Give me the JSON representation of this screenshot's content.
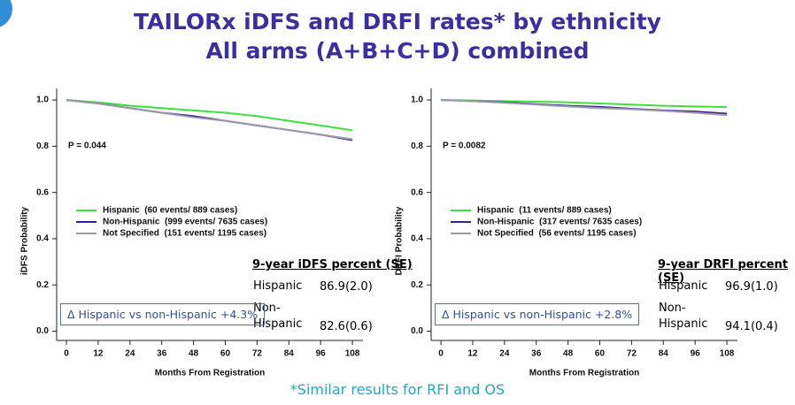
{
  "slide": {
    "title": [
      "TAILORx iDFS and DRFI rates* by ethnicity",
      "All arms (A+B+C+D) combined"
    ],
    "footnote": "*Similar results for RFI and OS"
  },
  "chart_data": [
    {
      "type": "line",
      "x_label": "Months From Registration",
      "y_label": "iDFS Probability",
      "x": [
        0,
        12,
        24,
        36,
        48,
        60,
        72,
        84,
        96,
        108
      ],
      "xlim": [
        -3.7,
        112
      ],
      "ylim": [
        -0.04,
        1.05
      ],
      "xticks": [
        0,
        12,
        24,
        36,
        48,
        60,
        72,
        84,
        96,
        108
      ],
      "yticks": [
        {
          "value": 0,
          "label": "0.0"
        },
        0.2,
        0.4,
        0.6,
        0.8,
        {
          "value": 1,
          "label": "1.0"
        }
      ],
      "legend": "center left",
      "series": [
        {
          "name": "Hispanic  (60 events/ 889 cases)",
          "color": "#3ee03e",
          "values": [
            1.0,
            0.99,
            0.975,
            0.965,
            0.955,
            0.945,
            0.93,
            0.91,
            0.89,
            0.869
          ]
        },
        {
          "name": "Non-Hispanic  (999 events/ 7635 cases)",
          "color": "#3a1f9a",
          "values": [
            1.0,
            0.985,
            0.965,
            0.945,
            0.93,
            0.91,
            0.89,
            0.87,
            0.85,
            0.826
          ]
        },
        {
          "name": "Not Specified  (151 events/ 1195 cases)",
          "color": "#9a9aa8",
          "values": [
            1.0,
            0.985,
            0.965,
            0.945,
            0.925,
            0.91,
            0.89,
            0.87,
            0.85,
            0.83
          ]
        }
      ],
      "p_value": "P = 0.044",
      "se_table": {
        "title": "9-year iDFS percent (SE)",
        "rows": [
          {
            "group": "Hispanic",
            "value": "86.9(2.0)"
          },
          {
            "group": "Non-Hispanic",
            "value": "82.6(0.6)"
          }
        ]
      },
      "delta_note": "Δ Hispanic vs non-Hispanic +4.3%"
    },
    {
      "type": "line",
      "x_label": "Months From Registration",
      "y_label": "DRFI Probability",
      "x": [
        0,
        12,
        24,
        36,
        48,
        60,
        72,
        84,
        96,
        108
      ],
      "xlim": [
        -3.7,
        112
      ],
      "ylim": [
        -0.04,
        1.05
      ],
      "xticks": [
        0,
        12,
        24,
        36,
        48,
        60,
        72,
        84,
        96,
        108
      ],
      "yticks": [
        {
          "value": 0,
          "label": "0.0"
        },
        0.2,
        0.4,
        0.6,
        0.8,
        {
          "value": 1,
          "label": "1.0"
        }
      ],
      "legend": "center left",
      "series": [
        {
          "name": "Hispanic  (11 events/ 889 cases)",
          "color": "#3ee03e",
          "values": [
            1.0,
            0.998,
            0.995,
            0.993,
            0.99,
            0.985,
            0.98,
            0.975,
            0.972,
            0.969
          ]
        },
        {
          "name": "Non-Hispanic  (317 events/ 7635 cases)",
          "color": "#3a1f9a",
          "values": [
            1.0,
            0.995,
            0.99,
            0.982,
            0.975,
            0.97,
            0.962,
            0.955,
            0.95,
            0.941
          ]
        },
        {
          "name": "Not Specified  (56 events/ 1195 cases)",
          "color": "#9a9aa8",
          "values": [
            1.0,
            0.995,
            0.988,
            0.98,
            0.972,
            0.965,
            0.96,
            0.953,
            0.945,
            0.935
          ]
        }
      ],
      "p_value": "P = 0.0082",
      "se_table": {
        "title": "9-year DRFI percent (SE)",
        "rows": [
          {
            "group": "Hispanic",
            "value": "96.9(1.0)"
          },
          {
            "group": "Non-Hispanic",
            "value": "94.1(0.4)"
          }
        ]
      },
      "delta_note": "Δ Hispanic vs non-Hispanic +2.8%"
    }
  ]
}
